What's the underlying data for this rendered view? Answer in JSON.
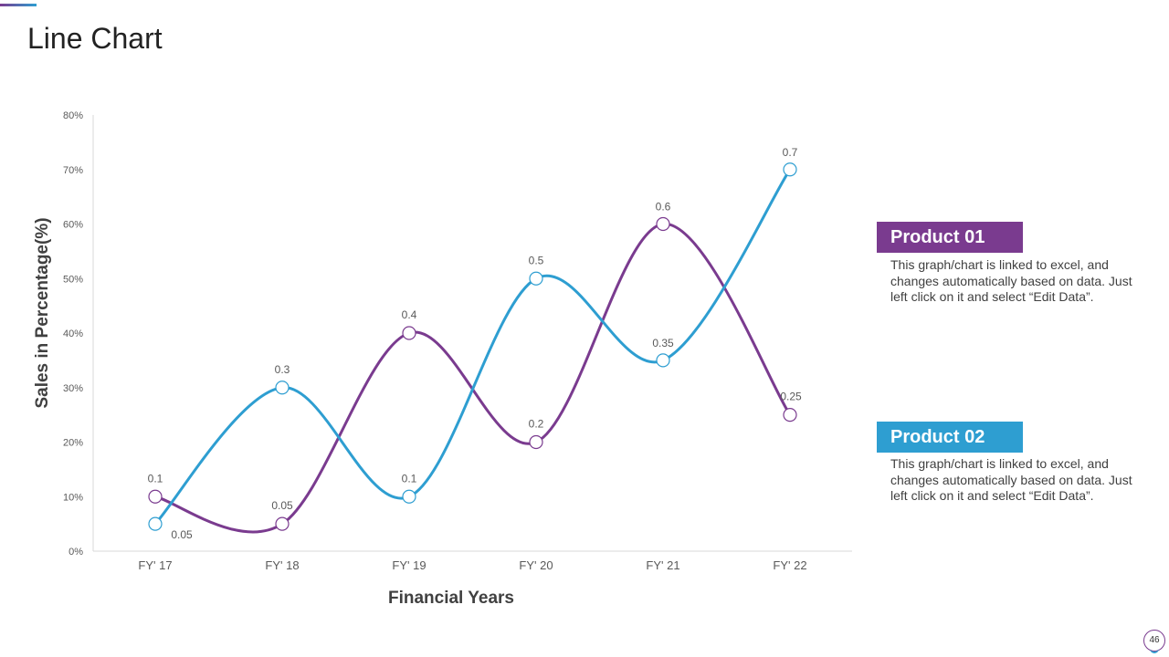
{
  "slide": {
    "title": "Line Chart",
    "page_number": "46"
  },
  "legend": {
    "product1": {
      "label": "Product 01",
      "description": "This graph/chart is linked to excel, and changes automatically based on data. Just left click on it and select “Edit Data”.",
      "color": "#7a3b8f"
    },
    "product2": {
      "label": "Product 02",
      "description": "This graph/chart is linked to excel, and changes automatically based on data. Just left click on it and select “Edit Data”.",
      "color": "#2e9ed1"
    }
  },
  "chart_data": {
    "type": "line",
    "title": "",
    "xlabel": "Financial Years",
    "ylabel": "Sales in Percentage(%)",
    "categories": [
      "FY' 17",
      "FY' 18",
      "FY' 19",
      "FY' 20",
      "FY' 21",
      "FY' 22"
    ],
    "ylim": [
      0,
      0.8
    ],
    "yticks": [
      0,
      0.1,
      0.2,
      0.3,
      0.4,
      0.5,
      0.6,
      0.7,
      0.8
    ],
    "ytick_labels": [
      "0%",
      "10%",
      "20%",
      "30%",
      "40%",
      "50%",
      "60%",
      "70%",
      "80%"
    ],
    "smooth": true,
    "grid": false,
    "series": [
      {
        "name": "Product 01",
        "color": "#7a3b8f",
        "values": [
          0.1,
          0.05,
          0.4,
          0.2,
          0.6,
          0.25
        ],
        "labels": [
          "0.1",
          "0.05",
          "0.4",
          "0.2",
          "0.6",
          "0.25"
        ]
      },
      {
        "name": "Product 02",
        "color": "#2e9ed1",
        "values": [
          0.05,
          0.3,
          0.1,
          0.5,
          0.35,
          0.7
        ],
        "labels": [
          "0.05",
          "0.3",
          "0.1",
          "0.5",
          "0.35",
          "0.7"
        ]
      }
    ]
  }
}
